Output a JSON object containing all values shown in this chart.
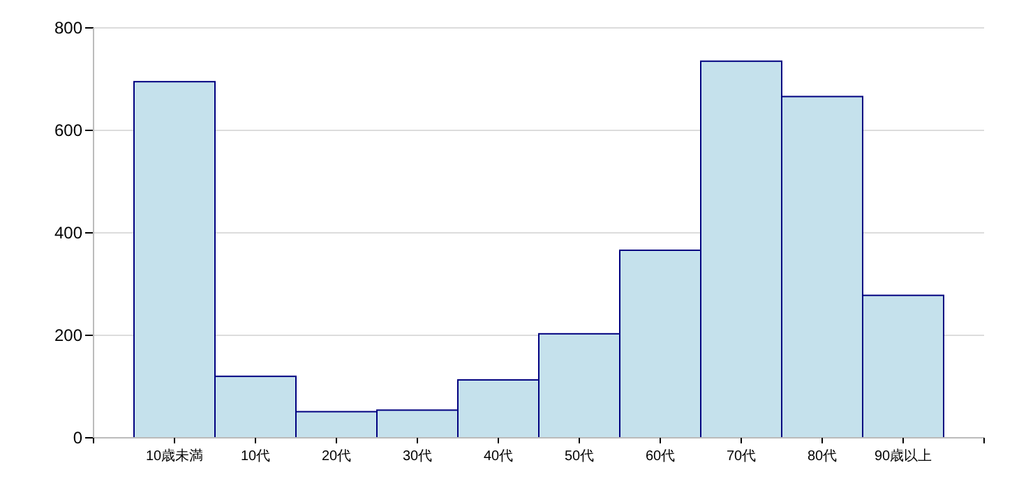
{
  "chart_data": {
    "type": "bar",
    "categories": [
      "10歳未満",
      "10代",
      "20代",
      "30代",
      "40代",
      "50代",
      "60代",
      "70代",
      "80代",
      "90歳以上"
    ],
    "values": [
      695,
      120,
      51,
      54,
      113,
      203,
      366,
      735,
      666,
      278
    ],
    "color": "#c5e1ec",
    "ylim": [
      0,
      800
    ],
    "yticks": [
      0,
      200,
      400,
      600,
      800
    ],
    "grid": "y"
  }
}
